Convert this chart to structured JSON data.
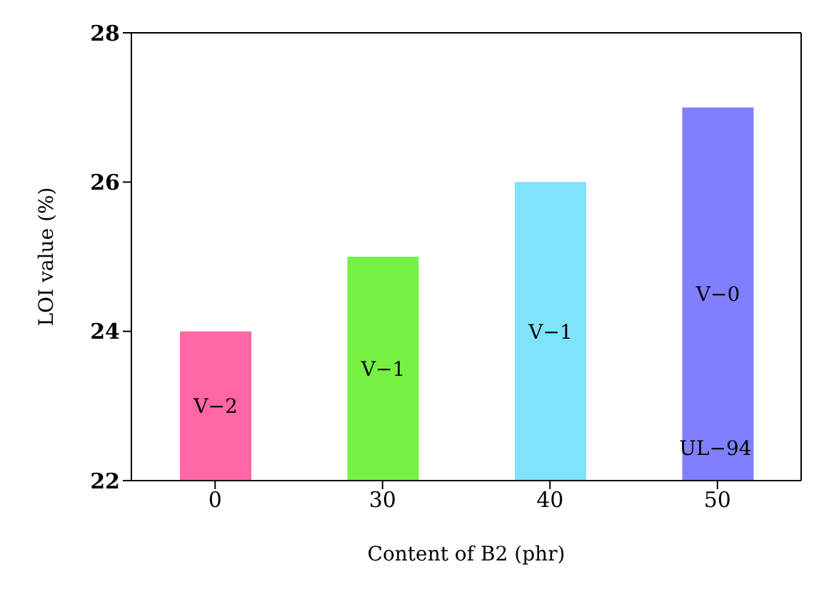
{
  "chart_data": {
    "type": "bar",
    "xlabel": "Content of B2 (phr)",
    "ylabel": "LOI value (%)",
    "categories": [
      "0",
      "30",
      "40",
      "50"
    ],
    "values": [
      24,
      25,
      26,
      27
    ],
    "colors": [
      "#ff66a3",
      "#77f044",
      "#7ee3fb",
      "#8080ff"
    ],
    "ylim": [
      22,
      28
    ],
    "yticks": [
      22,
      24,
      26,
      28
    ],
    "grid": false,
    "value_labels": [
      "V−2",
      "V−1",
      "V−1",
      "V−0"
    ],
    "annotations": [
      "UL−94"
    ]
  }
}
